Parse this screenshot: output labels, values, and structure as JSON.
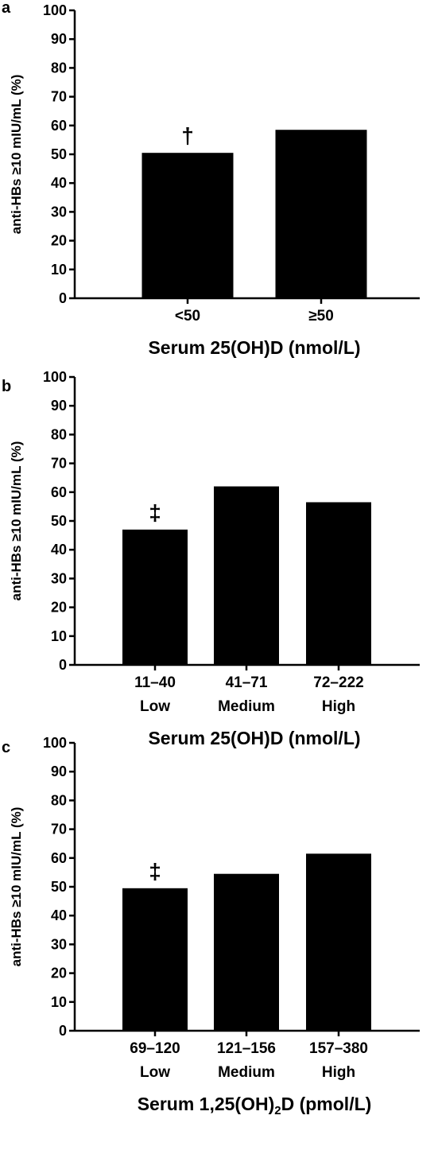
{
  "chart_data": [
    {
      "type": "bar",
      "panel": "a",
      "categories": [
        [
          "<50"
        ],
        [
          "≥50"
        ]
      ],
      "values": [
        50.5,
        58.5
      ],
      "annotations": [
        "†",
        ""
      ],
      "ylabel": "anti-HBs ≥10 mIU/mL (%)",
      "xlabel": "Serum 25(OH)D (nmol/L)",
      "ylim": [
        0,
        100
      ],
      "yticks": [
        0,
        10,
        20,
        30,
        40,
        50,
        60,
        70,
        80,
        90,
        100
      ],
      "color": "#000000",
      "grid": false,
      "legend": "none"
    },
    {
      "type": "bar",
      "panel": "b",
      "categories": [
        [
          "11–40",
          "Low"
        ],
        [
          "41–71",
          "Medium"
        ],
        [
          "72–222",
          "High"
        ]
      ],
      "values": [
        47,
        62,
        56.5
      ],
      "annotations": [
        "‡",
        "",
        ""
      ],
      "ylabel": "anti-HBs ≥10 mIU/mL (%)",
      "xlabel": "Serum 25(OH)D (nmol/L)",
      "ylim": [
        0,
        100
      ],
      "yticks": [
        0,
        10,
        20,
        30,
        40,
        50,
        60,
        70,
        80,
        90,
        100
      ],
      "color": "#000000",
      "grid": false,
      "legend": "none"
    },
    {
      "type": "bar",
      "panel": "c",
      "categories": [
        [
          "69–120",
          "Low"
        ],
        [
          "121–156",
          "Medium"
        ],
        [
          "157–380",
          "High"
        ]
      ],
      "values": [
        49.5,
        54.5,
        61.5
      ],
      "annotations": [
        "‡",
        "",
        ""
      ],
      "ylabel": "anti-HBs ≥10 mIU/mL (%)",
      "xlabel": "Serum 1,25(OH)₂D (pmol/L)",
      "ylim": [
        0,
        100
      ],
      "yticks": [
        0,
        10,
        20,
        30,
        40,
        50,
        60,
        70,
        80,
        90,
        100
      ],
      "color": "#000000",
      "grid": false,
      "legend": "none"
    }
  ]
}
